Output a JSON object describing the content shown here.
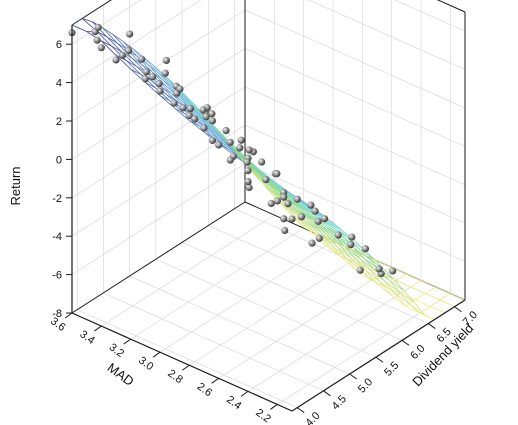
{
  "chart_data": {
    "type": "surface3d",
    "title": "",
    "axes": {
      "z": {
        "label": "Return",
        "range": [
          -8,
          7
        ],
        "ticks": [
          -8,
          -6,
          -4,
          -2,
          0,
          2,
          4,
          6
        ],
        "tick_labels": [
          "-8",
          "-6",
          "-4",
          "-2",
          "0",
          "2",
          "4",
          "6"
        ]
      },
      "x": {
        "label": "MAD",
        "range": [
          2.1,
          3.6
        ],
        "ticks": [
          3.6,
          3.4,
          3.2,
          3.0,
          2.8,
          2.6,
          2.4,
          2.2
        ],
        "tick_labels": [
          "3.6",
          "3.4",
          "3.2",
          "3.0",
          "2.8",
          "2.6",
          "2.4",
          "2.2"
        ]
      },
      "y": {
        "label": "Dividend yield",
        "range": [
          3.9,
          7.2
        ],
        "ticks": [
          4.0,
          4.5,
          5.0,
          5.5,
          6.0,
          6.5,
          7.0
        ],
        "tick_labels": [
          "4.0",
          "4.5",
          "5.0",
          "5.5",
          "6.0",
          "6.5",
          "7.0"
        ]
      }
    },
    "grid": true,
    "surface": {
      "colormap": [
        "#f2e98c",
        "#8fd87f",
        "#7fdcd6",
        "#6ea3d6",
        "#3b3d8f"
      ],
      "z_range": [
        -8,
        7
      ],
      "mesh_x": [
        2.1,
        3.6,
        16
      ],
      "mesh_y": [
        3.9,
        7.2,
        18
      ]
    },
    "points_marker_color": "#8c8c8c",
    "points": [
      [
        3.6,
        3.9,
        6.6
      ],
      [
        3.5,
        4.1,
        6.2
      ],
      [
        3.4,
        4.3,
        5.4
      ],
      [
        3.3,
        4.6,
        4.1
      ],
      [
        3.2,
        4.9,
        2.3
      ],
      [
        3.1,
        5.3,
        0.0
      ],
      [
        3.0,
        5.6,
        -2.4
      ],
      [
        2.9,
        6.0,
        -5.0
      ],
      [
        3.6,
        4.4,
        6.0
      ],
      [
        3.5,
        4.7,
        4.6
      ],
      [
        3.4,
        5.0,
        2.7
      ],
      [
        3.3,
        5.4,
        0.5
      ],
      [
        3.2,
        5.8,
        -2.0
      ],
      [
        3.1,
        6.3,
        -4.8
      ],
      [
        3.0,
        6.8,
        -7.4
      ],
      [
        3.6,
        5.0,
        4.6
      ],
      [
        3.5,
        5.4,
        2.2
      ],
      [
        3.4,
        5.9,
        -0.6
      ],
      [
        3.3,
        6.4,
        -3.5
      ],
      [
        3.2,
        6.9,
        -6.2
      ],
      [
        3.6,
        5.7,
        2.0
      ],
      [
        3.5,
        6.2,
        -1.0
      ],
      [
        3.4,
        6.8,
        -4.0
      ],
      [
        3.6,
        6.4,
        -1.8
      ],
      [
        3.5,
        7.0,
        -4.6
      ],
      [
        3.6,
        7.1,
        -5.0
      ],
      [
        3.3,
        3.9,
        6.2
      ],
      [
        3.2,
        4.2,
        5.4
      ],
      [
        3.1,
        4.5,
        4.1
      ],
      [
        3.0,
        4.9,
        2.3
      ],
      [
        2.9,
        5.3,
        0.0
      ],
      [
        2.8,
        5.7,
        -2.4
      ],
      [
        2.7,
        6.1,
        -4.9
      ],
      [
        2.6,
        6.6,
        -7.1
      ],
      [
        3.0,
        3.9,
        5.6
      ],
      [
        2.9,
        4.2,
        4.5
      ],
      [
        2.8,
        4.6,
        3.0
      ],
      [
        2.7,
        5.0,
        1.0
      ],
      [
        2.6,
        5.4,
        -1.3
      ],
      [
        2.5,
        5.9,
        -3.7
      ],
      [
        2.4,
        6.4,
        -6.0
      ],
      [
        2.7,
        3.9,
        4.7
      ],
      [
        2.6,
        4.3,
        3.3
      ],
      [
        2.5,
        4.7,
        1.6
      ],
      [
        2.4,
        5.1,
        -0.4
      ],
      [
        2.3,
        5.6,
        -2.6
      ],
      [
        2.2,
        6.1,
        -4.9
      ],
      [
        2.4,
        3.9,
        3.5
      ],
      [
        2.3,
        4.3,
        2.0
      ],
      [
        2.2,
        4.8,
        0.1
      ],
      [
        2.1,
        5.3,
        -2.0
      ],
      [
        2.2,
        3.9,
        2.6
      ],
      [
        2.1,
        4.4,
        1.0
      ],
      [
        2.1,
        3.9,
        2.0
      ],
      [
        3.4,
        3.9,
        6.5
      ],
      [
        3.1,
        3.9,
        5.9
      ],
      [
        2.8,
        3.9,
        5.0
      ],
      [
        2.5,
        3.9,
        3.9
      ],
      [
        3.55,
        4.2,
        6.3
      ],
      [
        3.45,
        4.55,
        5.1
      ],
      [
        3.25,
        4.25,
        5.8
      ],
      [
        3.15,
        4.7,
        3.8
      ],
      [
        3.05,
        4.35,
        4.9
      ],
      [
        2.95,
        4.75,
        3.1
      ],
      [
        2.85,
        4.35,
        4.2
      ],
      [
        2.75,
        4.75,
        2.4
      ],
      [
        2.65,
        5.15,
        0.3
      ],
      [
        3.35,
        5.15,
        1.6
      ],
      [
        3.25,
        5.6,
        -0.8
      ],
      [
        3.15,
        6.0,
        -3.3
      ],
      [
        3.05,
        6.4,
        -5.6
      ],
      [
        2.95,
        5.1,
        1.0
      ],
      [
        2.85,
        5.5,
        -1.3
      ],
      [
        2.75,
        5.9,
        -3.6
      ],
      [
        2.55,
        5.6,
        -2.1
      ],
      [
        2.45,
        6.0,
        -4.2
      ],
      [
        2.35,
        6.3,
        -5.9
      ]
    ]
  }
}
